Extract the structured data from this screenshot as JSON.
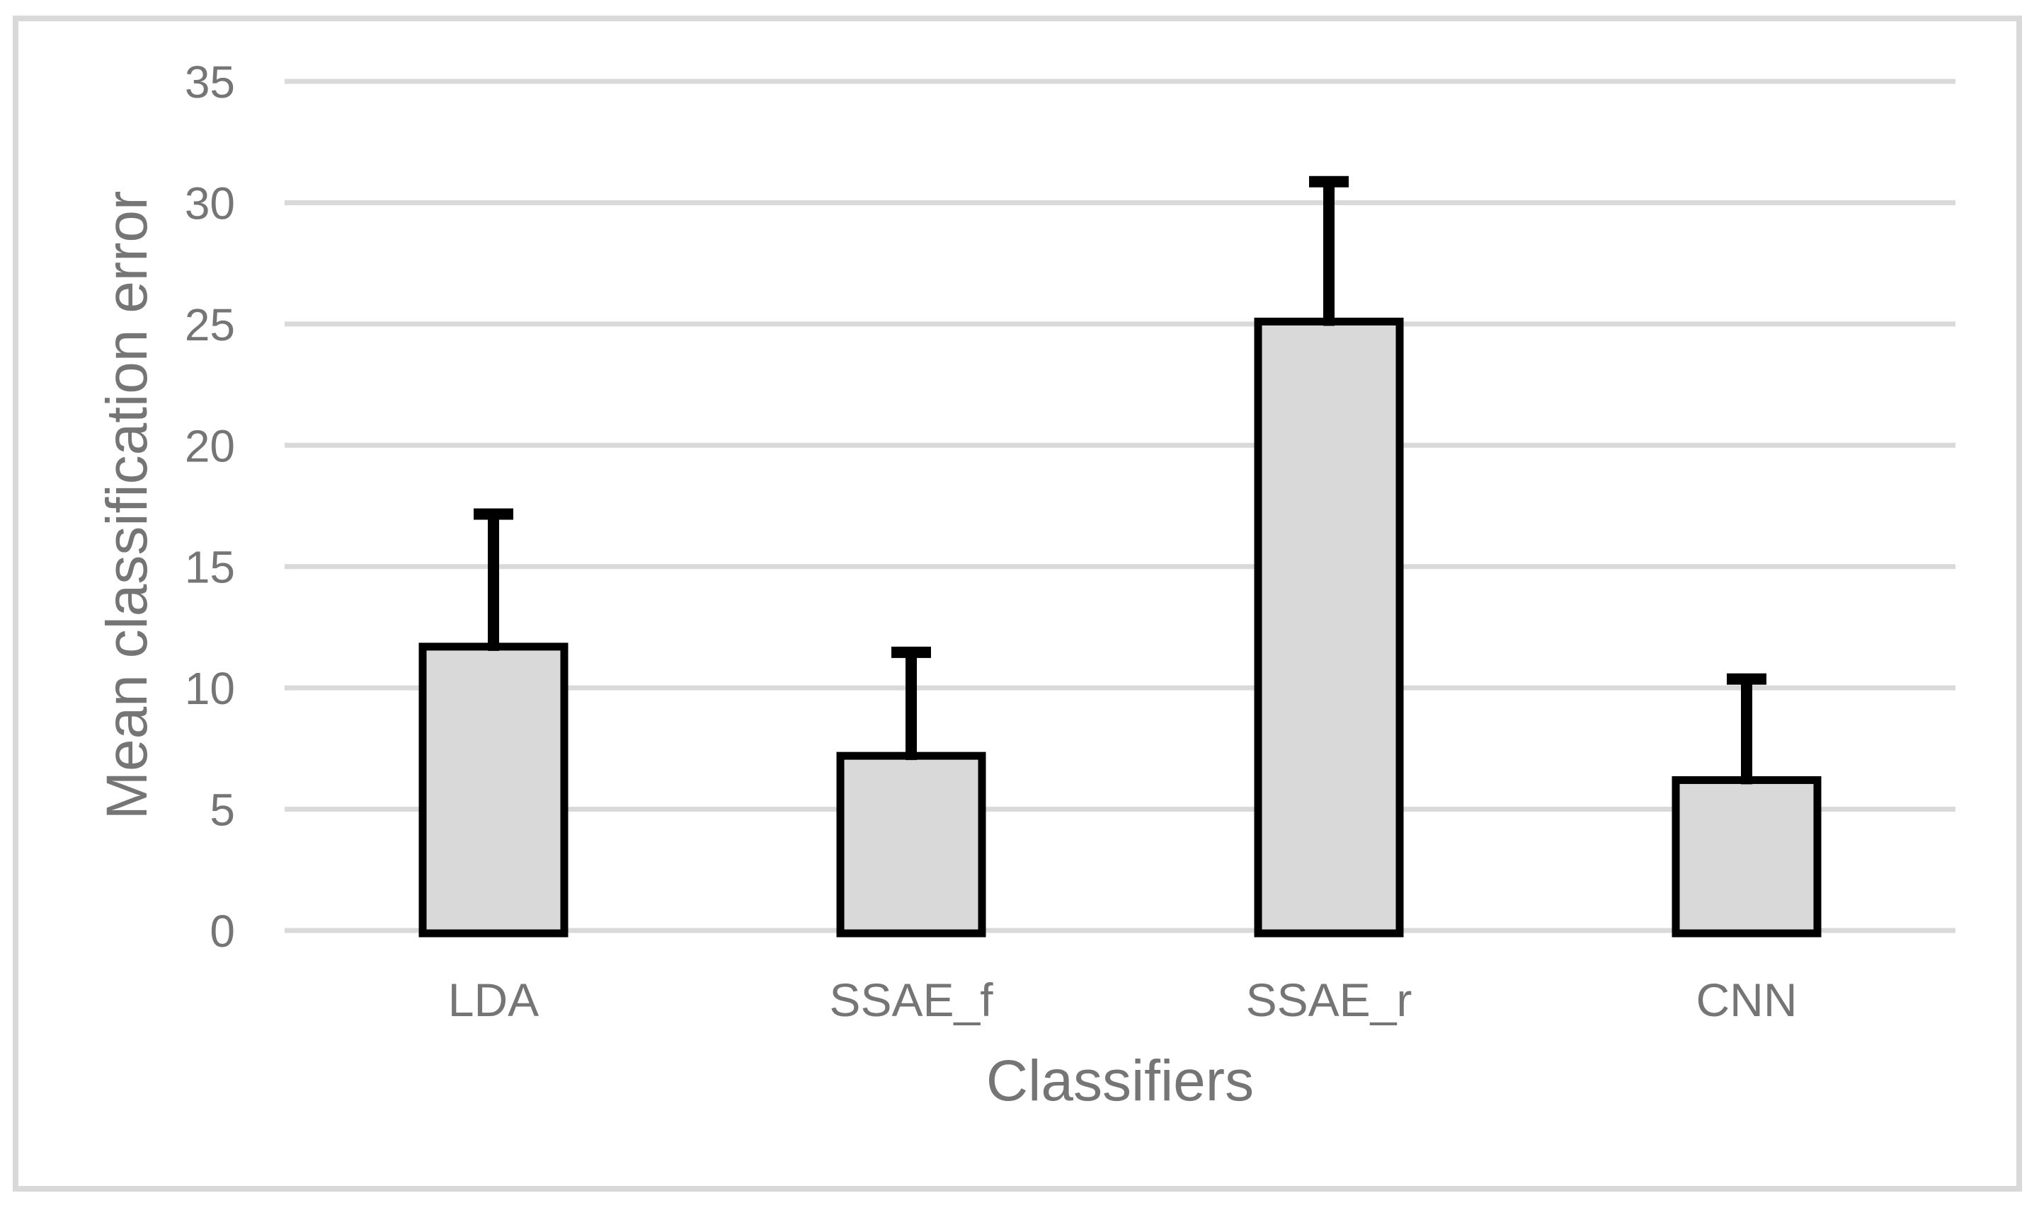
{
  "figure": {
    "background_color": "#ffffff",
    "border_color": "#d9d9d9",
    "text_color": "#757575"
  },
  "chart_data": {
    "type": "bar",
    "title": "",
    "categories": [
      "LDA",
      "SSAE_f",
      "SSAE_r",
      "CNN"
    ],
    "values": [
      11.7,
      7.2,
      25.1,
      6.2
    ],
    "error_up": [
      5.7,
      4.5,
      6.0,
      4.4
    ],
    "error_bar_tops": [
      17.4,
      11.7,
      31.1,
      10.6
    ],
    "xlabel": "Classifiers",
    "ylabel": "Mean classification error",
    "ylim": [
      0,
      35
    ],
    "yticks": [
      0,
      5,
      10,
      15,
      20,
      25,
      30,
      35
    ],
    "grid": true,
    "legend_position": "none",
    "gridline_color": "#d9d9d9",
    "bar_fill": "#d9d9d9",
    "bar_border": "#000000",
    "error_color": "#000000",
    "tick_label_color": "#757575"
  }
}
